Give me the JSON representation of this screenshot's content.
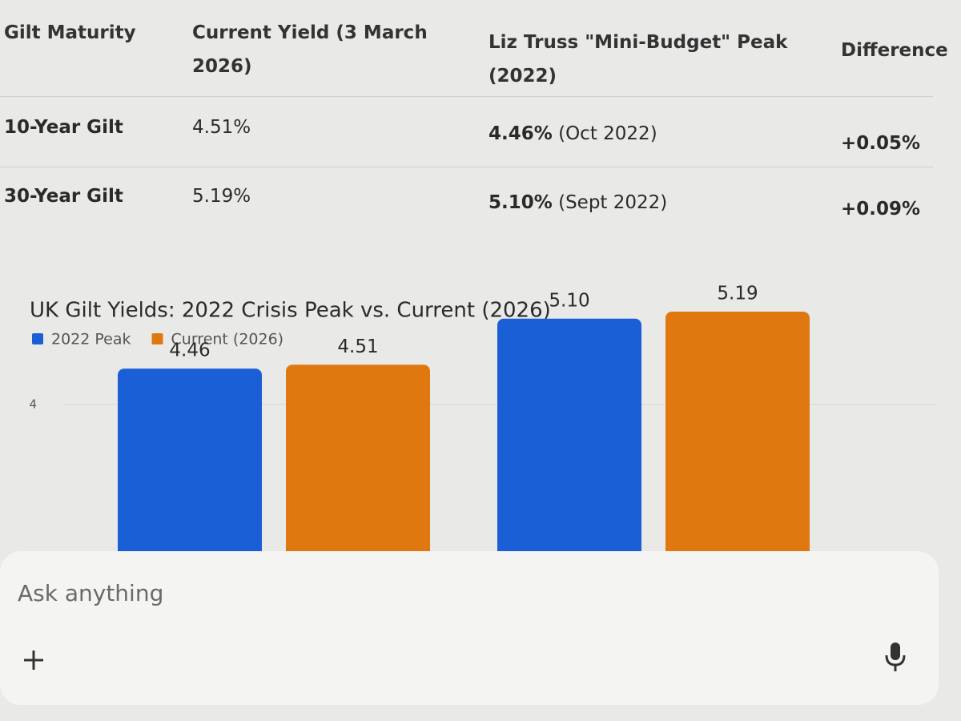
{
  "table": {
    "headers": [
      "Gilt Maturity",
      "Current Yield (3 March 2026)",
      "Liz Truss \"Mini-Budget\" Peak (2022)",
      "Difference"
    ],
    "rows": [
      [
        "10-Year Gilt",
        "4.51%",
        [
          "4.46%",
          "(Oct 2022)"
        ],
        "+0.05%"
      ],
      [
        "30-Year Gilt",
        "5.19%",
        [
          "5.10%",
          "(Sept 2022)"
        ],
        "+0.09%"
      ]
    ]
  },
  "chart_data": {
    "type": "bar",
    "title": "UK Gilt Yields: 2022 Crisis Peak vs. Current (2026)",
    "categories": [
      null,
      null
    ],
    "series": [
      {
        "name": "2022 Peak",
        "color": "#1a5fd6",
        "values": [
          4.46,
          5.1
        ],
        "value_labels": [
          "4.46",
          "5.10"
        ]
      },
      {
        "name": "Current (2026)",
        "color": "#e07810",
        "values": [
          4.51,
          5.19
        ],
        "value_labels": [
          "4.51",
          "5.19"
        ]
      }
    ],
    "ylim": [
      2,
      6
    ],
    "yticks": [
      4
    ],
    "grid": true
  },
  "input": {
    "placeholder": "Ask anything"
  }
}
